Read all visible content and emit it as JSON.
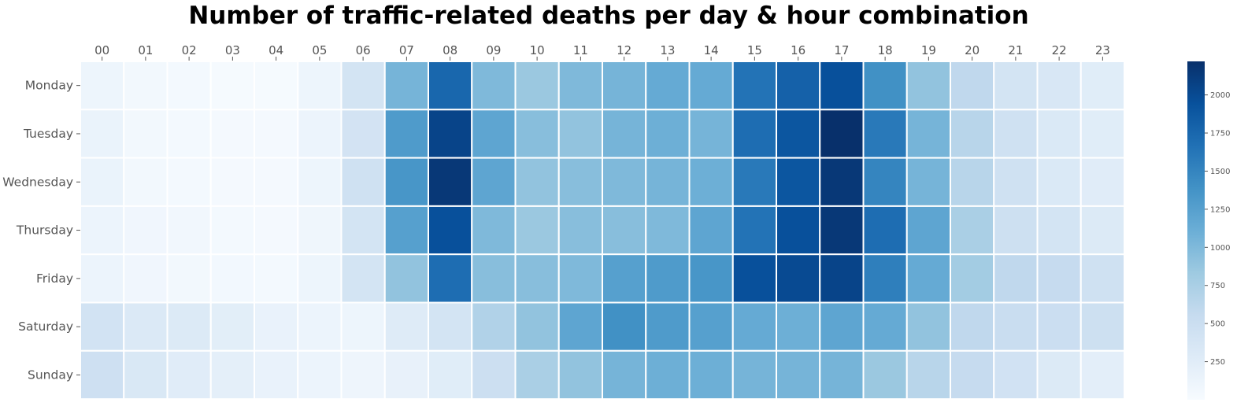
{
  "chart_data": {
    "type": "heatmap",
    "title": "Number of traffic-related deaths per day & hour combination",
    "xlabel": "",
    "ylabel": "",
    "x_position": "top",
    "categories": [
      "00",
      "01",
      "02",
      "03",
      "04",
      "05",
      "06",
      "07",
      "08",
      "09",
      "10",
      "11",
      "12",
      "13",
      "14",
      "15",
      "16",
      "17",
      "18",
      "19",
      "20",
      "21",
      "22",
      "23"
    ],
    "rows": [
      "Monday",
      "Tuesday",
      "Wednesday",
      "Thursday",
      "Friday",
      "Saturday",
      "Sunday"
    ],
    "colormap": "Blues",
    "colorbar": {
      "min": 0,
      "max": 2220,
      "ticks": [
        250,
        500,
        750,
        1000,
        1250,
        1500,
        1750,
        2000
      ]
    },
    "values": [
      [
        110,
        60,
        40,
        20,
        20,
        110,
        400,
        1050,
        1750,
        1000,
        850,
        1000,
        1050,
        1150,
        1150,
        1650,
        1800,
        1950,
        1400,
        900,
        600,
        400,
        350,
        250
      ],
      [
        140,
        60,
        40,
        30,
        30,
        120,
        410,
        1300,
        2050,
        1200,
        950,
        900,
        1050,
        1100,
        1050,
        1700,
        1900,
        2220,
        1600,
        1050,
        650,
        450,
        320,
        250
      ],
      [
        140,
        60,
        40,
        30,
        30,
        110,
        450,
        1350,
        2150,
        1200,
        900,
        950,
        1000,
        1050,
        1100,
        1600,
        1900,
        2150,
        1500,
        1050,
        650,
        450,
        320,
        260
      ],
      [
        120,
        80,
        70,
        40,
        30,
        90,
        400,
        1250,
        1950,
        1000,
        850,
        950,
        950,
        1000,
        1200,
        1650,
        1950,
        2150,
        1700,
        1200,
        750,
        470,
        400,
        300
      ],
      [
        120,
        80,
        60,
        50,
        40,
        110,
        400,
        900,
        1700,
        950,
        950,
        1000,
        1250,
        1300,
        1350,
        1950,
        2000,
        2050,
        1550,
        1150,
        800,
        600,
        550,
        450
      ],
      [
        420,
        310,
        300,
        230,
        150,
        120,
        110,
        280,
        400,
        700,
        900,
        1200,
        1400,
        1300,
        1250,
        1150,
        1100,
        1200,
        1150,
        900,
        600,
        520,
        500,
        470
      ],
      [
        460,
        330,
        260,
        210,
        150,
        120,
        100,
        170,
        250,
        480,
        750,
        900,
        1050,
        1100,
        1100,
        1050,
        1050,
        1050,
        850,
        650,
        550,
        430,
        300,
        220
      ]
    ]
  }
}
